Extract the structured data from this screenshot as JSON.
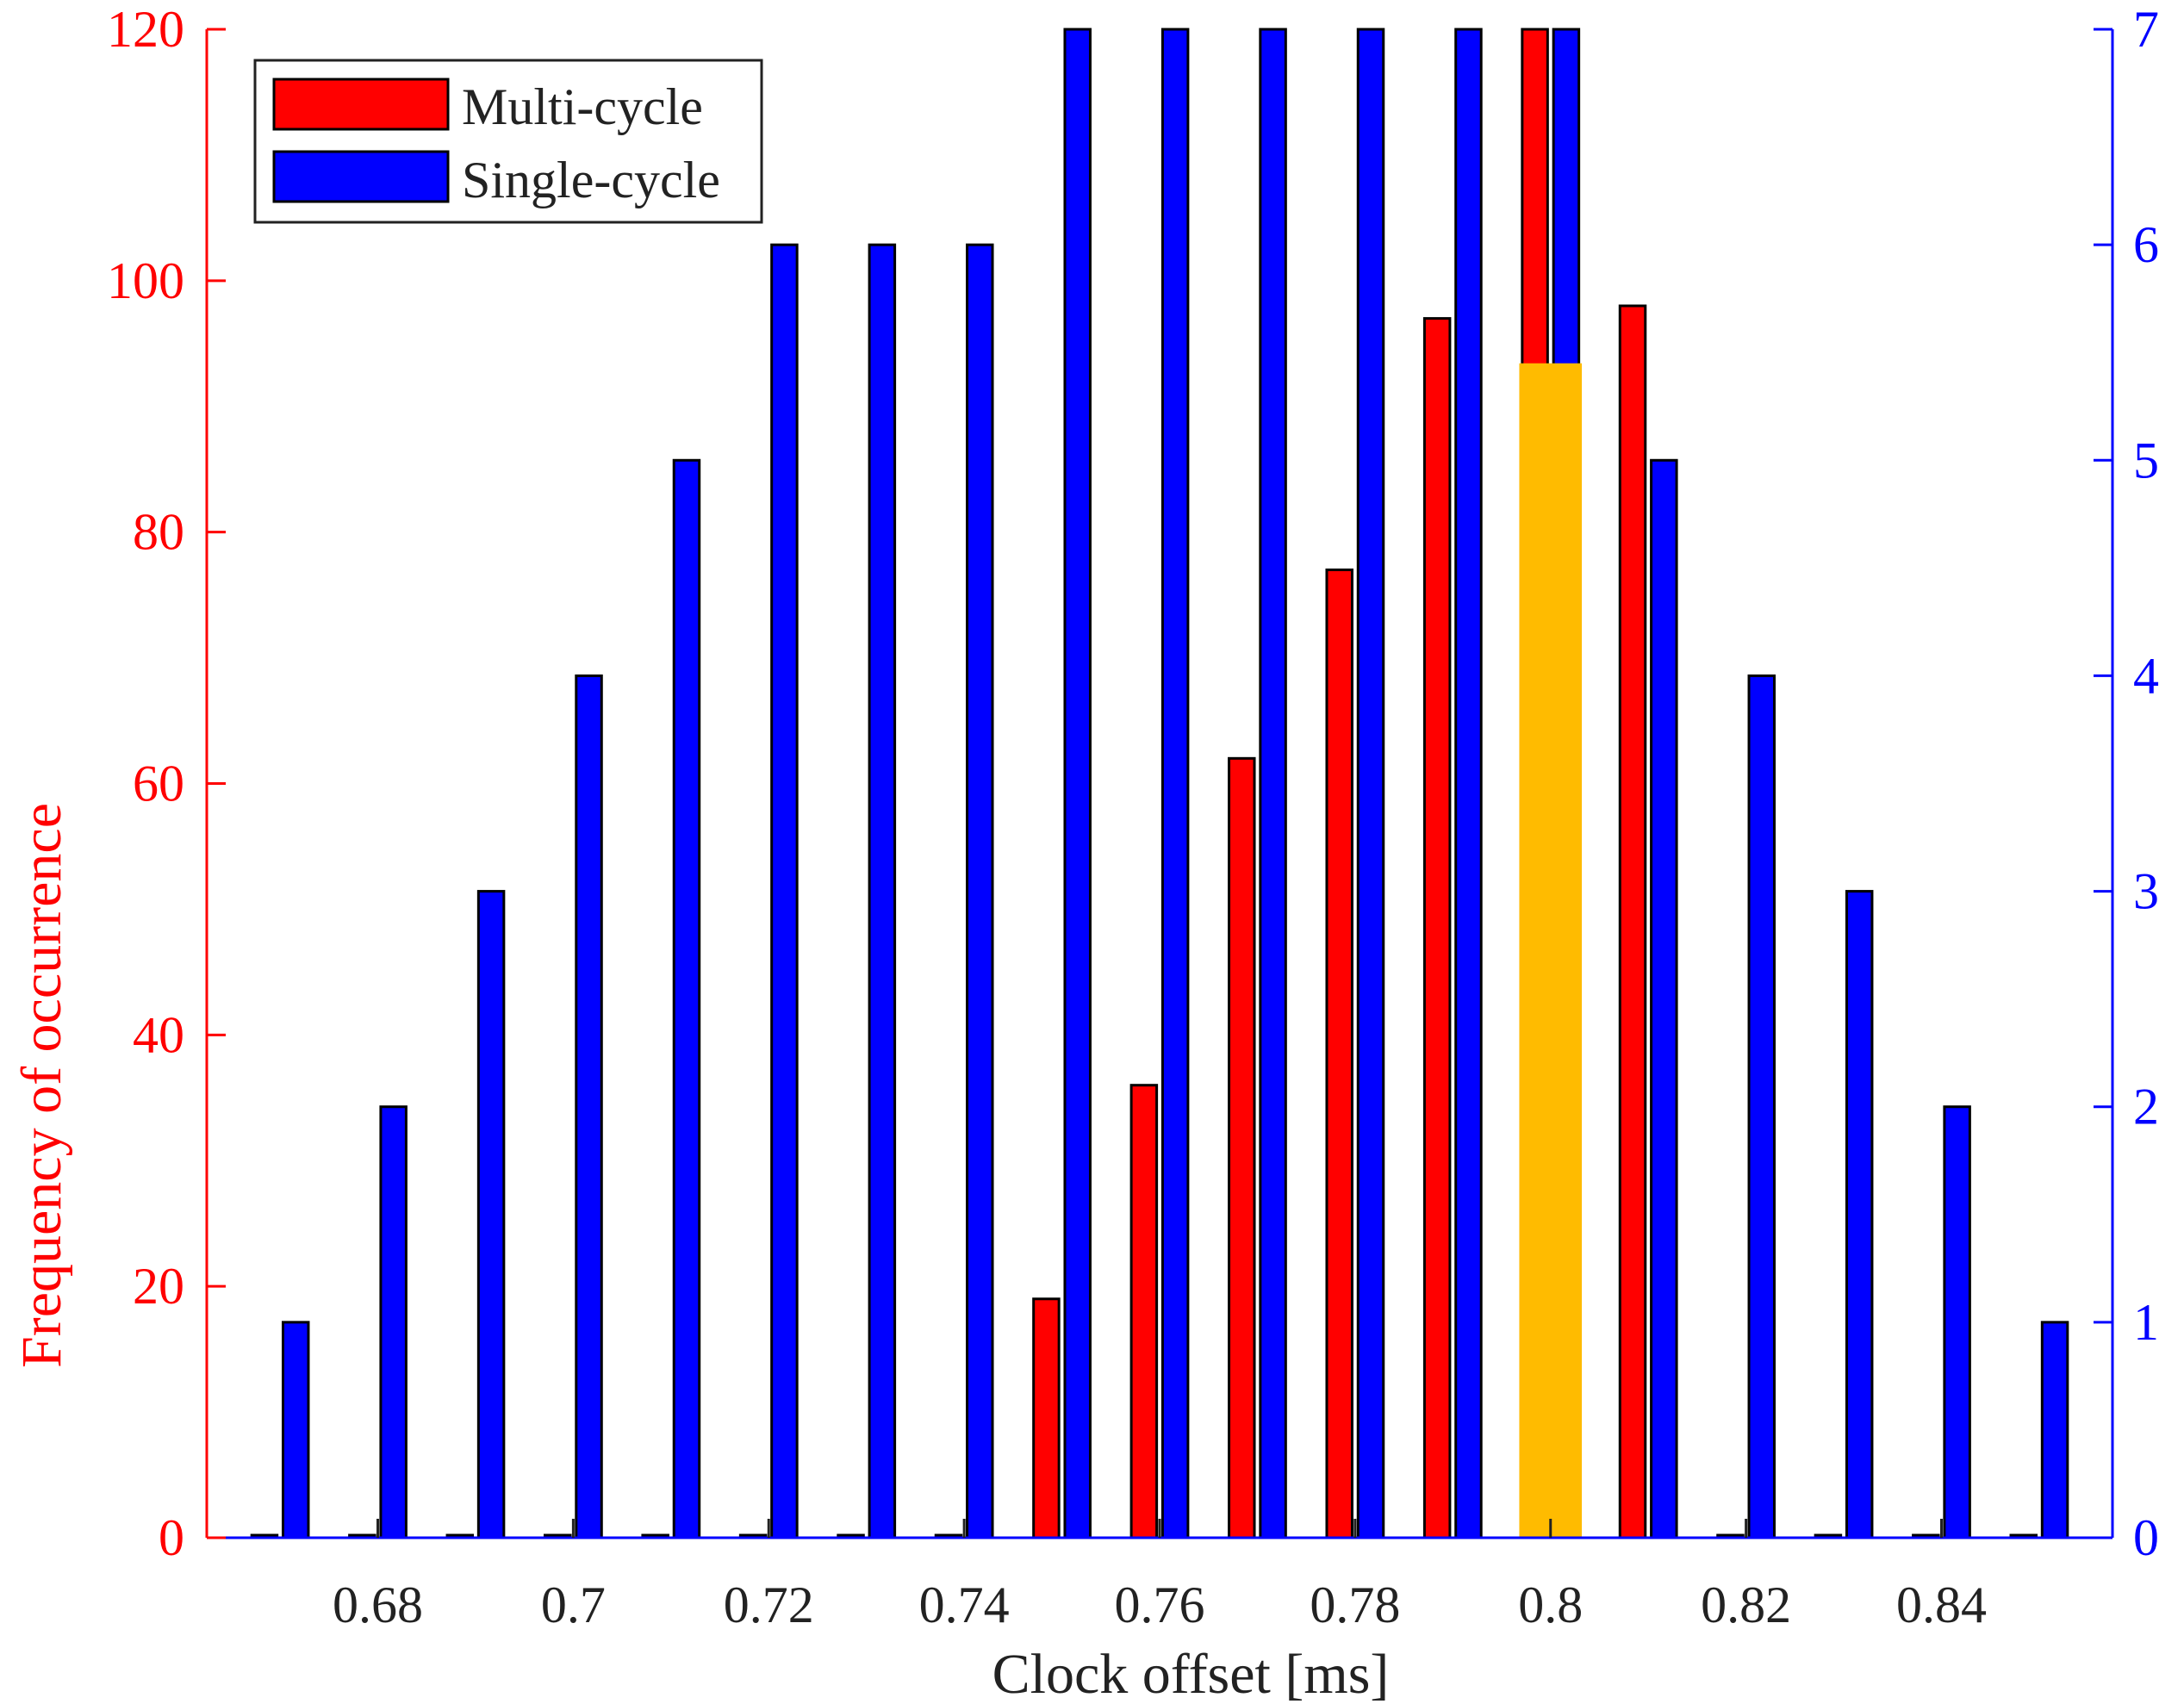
{
  "chart_data": {
    "type": "bar",
    "x": [
      0.67,
      0.68,
      0.69,
      0.7,
      0.71,
      0.72,
      0.73,
      0.74,
      0.75,
      0.76,
      0.77,
      0.78,
      0.79,
      0.8,
      0.81,
      0.82,
      0.83,
      0.84,
      0.85
    ],
    "series": [
      {
        "name": "Multi-cycle",
        "axis": "left",
        "color": "#ff0000",
        "values": [
          0,
          0,
          0,
          0,
          0,
          0,
          0,
          0,
          19,
          36,
          62,
          77,
          97,
          120,
          98,
          0,
          0,
          0,
          0
        ]
      },
      {
        "name": "Single-cycle",
        "axis": "right",
        "color": "#0000ff",
        "values": [
          1,
          2,
          3,
          4,
          5,
          6,
          6,
          6,
          7,
          7,
          7,
          7,
          7,
          7,
          5,
          4,
          3,
          2,
          1
        ]
      }
    ],
    "highlight": {
      "x": 0.8,
      "value_right": 5.45,
      "color": "#ffbb00"
    },
    "xlabel": "Clock offset [ms]",
    "ylabel_left": "Frequency of occurrence",
    "xlim": [
      0.6625,
      0.8575
    ],
    "ylim_left": [
      0,
      120
    ],
    "ylim_right": [
      0,
      7
    ],
    "xticks": [
      0.68,
      0.7,
      0.72,
      0.74,
      0.76,
      0.78,
      0.8,
      0.82,
      0.84
    ],
    "xtick_labels": [
      "0.68",
      "0.7",
      "0.72",
      "0.74",
      "0.76",
      "0.78",
      "0.8",
      "0.82",
      "0.84"
    ],
    "yticks_left": [
      "0",
      "20",
      "40",
      "60",
      "80",
      "100",
      "120"
    ],
    "yticks_right": [
      "0",
      "1",
      "2",
      "3",
      "4",
      "5",
      "6",
      "7"
    ],
    "legend_position": "top-left",
    "left_axis_color": "#ff0000",
    "right_axis_color": "#0000ff"
  }
}
